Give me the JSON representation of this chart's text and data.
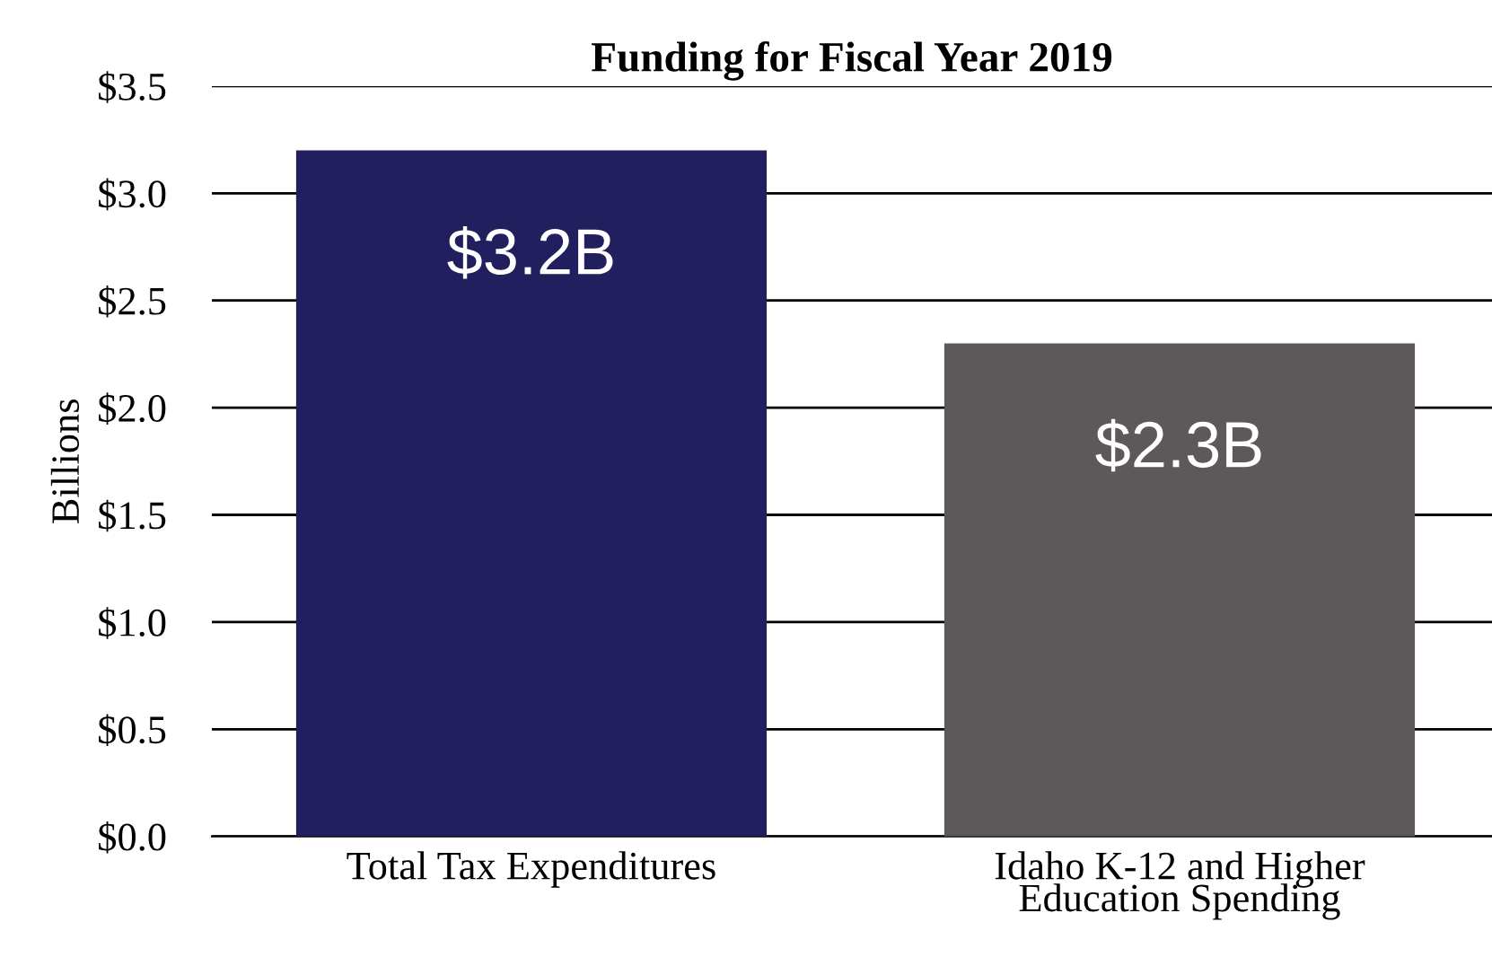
{
  "chart_data": {
    "type": "bar",
    "title": "Funding for Fiscal Year 2019",
    "ylabel": "Billions",
    "categories": [
      "Total Tax Expenditures",
      "Idaho K-12 and Higher\nEducation Spending"
    ],
    "values": [
      3.2,
      2.3
    ],
    "colors": [
      "#221f5e",
      "#5d5859"
    ],
    "value_labels": [
      "$3.2B",
      "$2.3B"
    ],
    "ylim": [
      0,
      3.5
    ],
    "yticks": [
      {
        "value": 0,
        "label": "$0.0"
      },
      {
        "value": 0.5,
        "label": "$0.5"
      },
      {
        "value": 1,
        "label": "$1.0"
      },
      {
        "value": 1.5,
        "label": "$1.5"
      },
      {
        "value": 2,
        "label": "$2.0"
      },
      {
        "value": 2.5,
        "label": "$2.5"
      },
      {
        "value": 3,
        "label": "$3.0"
      },
      {
        "value": 3.5,
        "label": "$3.5"
      }
    ],
    "grid": "y"
  }
}
